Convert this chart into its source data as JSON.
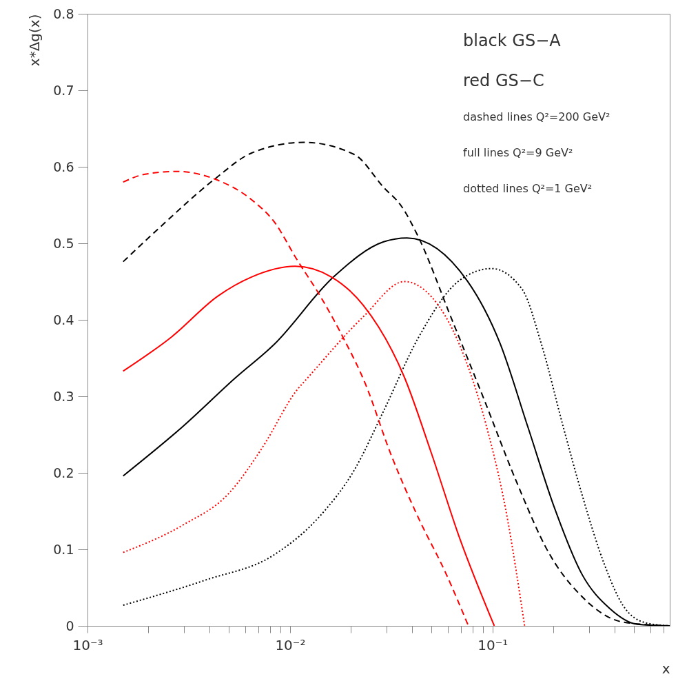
{
  "chart_data": {
    "type": "line",
    "xlabel": "x",
    "ylabel": "x*Δg(x)",
    "log": "x",
    "grid": false,
    "xlim": [
      0.001,
      0.75
    ],
    "ylim": [
      0,
      0.8
    ],
    "xticks": [
      {
        "value": 0.001,
        "label": "10⁻³"
      },
      {
        "value": 0.002,
        "label": null
      },
      {
        "value": 0.003,
        "label": null
      },
      {
        "value": 0.004,
        "label": null
      },
      {
        "value": 0.005,
        "label": null
      },
      {
        "value": 0.006,
        "label": null
      },
      {
        "value": 0.007,
        "label": null
      },
      {
        "value": 0.008,
        "label": null
      },
      {
        "value": 0.009,
        "label": null
      },
      {
        "value": 0.01,
        "label": "10⁻²"
      },
      {
        "value": 0.02,
        "label": null
      },
      {
        "value": 0.03,
        "label": null
      },
      {
        "value": 0.04,
        "label": null
      },
      {
        "value": 0.05,
        "label": null
      },
      {
        "value": 0.06,
        "label": null
      },
      {
        "value": 0.07,
        "label": null
      },
      {
        "value": 0.08,
        "label": null
      },
      {
        "value": 0.09,
        "label": null
      },
      {
        "value": 0.1,
        "label": "10⁻¹"
      },
      {
        "value": 0.2,
        "label": null
      },
      {
        "value": 0.3,
        "label": null
      },
      {
        "value": 0.4,
        "label": null
      },
      {
        "value": 0.5,
        "label": null
      },
      {
        "value": 0.6,
        "label": null
      },
      {
        "value": 0.7,
        "label": null
      }
    ],
    "yticks": [
      0,
      0.1,
      0.2,
      0.3,
      0.4,
      0.5,
      0.6,
      0.7,
      0.8
    ],
    "annotations": [
      "black GS−A",
      "red GS−C",
      "dashed lines Q²=200 GeV²",
      "full lines Q²=9 GeV²",
      "dotted lines Q²=1 GeV²"
    ],
    "series": [
      {
        "color": "#000000",
        "line_style": "dashed",
        "x": [
          0.0015,
          0.00228,
          0.00425,
          0.00646,
          0.0117,
          0.0208,
          0.029,
          0.0356,
          0.0429,
          0.0622,
          0.0905,
          0.131,
          0.19,
          0.277,
          0.44,
          0.75
        ],
        "values": [
          0.476,
          0.521,
          0.584,
          0.618,
          0.632,
          0.616,
          0.573,
          0.548,
          0.509,
          0.404,
          0.297,
          0.189,
          0.095,
          0.038,
          0.005,
          0
        ]
      },
      {
        "color": "#000000",
        "line_style": "solid",
        "x": [
          0.0015,
          0.00297,
          0.00537,
          0.00836,
          0.0164,
          0.029,
          0.0378,
          0.075,
          0.109,
          0.149,
          0.203,
          0.277,
          0.378,
          0.52,
          0.75
        ],
        "values": [
          0.196,
          0.261,
          0.324,
          0.368,
          0.456,
          0.502,
          0.507,
          0.451,
          0.369,
          0.261,
          0.153,
          0.067,
          0.023,
          0.002,
          0
        ]
      },
      {
        "color": "#000000",
        "line_style": "dotted",
        "x": [
          0.0015,
          0.00384,
          0.00836,
          0.0141,
          0.0208,
          0.029,
          0.0429,
          0.0683,
          0.0991,
          0.14,
          0.174,
          0.223,
          0.277,
          0.356,
          0.44,
          0.57,
          0.75
        ],
        "values": [
          0.027,
          0.06,
          0.093,
          0.144,
          0.204,
          0.281,
          0.376,
          0.451,
          0.467,
          0.44,
          0.369,
          0.261,
          0.171,
          0.081,
          0.027,
          0.004,
          0
        ]
      },
      {
        "color": "#ff0000",
        "line_style": "dashed",
        "x": [
          0.0015,
          0.0019,
          0.00275,
          0.00425,
          0.00646,
          0.00836,
          0.0108,
          0.0141,
          0.0182,
          0.0235,
          0.0314,
          0.0429,
          0.0585,
          0.076
        ],
        "values": [
          0.58,
          0.59,
          0.594,
          0.584,
          0.557,
          0.528,
          0.479,
          0.431,
          0.378,
          0.317,
          0.225,
          0.142,
          0.07,
          0
        ]
      },
      {
        "color": "#ff0000",
        "line_style": "solid",
        "x": [
          0.0015,
          0.00261,
          0.0044,
          0.00646,
          0.0106,
          0.016,
          0.023,
          0.0367,
          0.05,
          0.0683,
          0.102
        ],
        "values": [
          0.333,
          0.378,
          0.431,
          0.456,
          0.47,
          0.456,
          0.419,
          0.325,
          0.225,
          0.117,
          0
        ]
      },
      {
        "color": "#ff0000",
        "line_style": "dotted",
        "x": [
          0.0015,
          0.00297,
          0.00498,
          0.00734,
          0.0108,
          0.0123,
          0.023,
          0.0367,
          0.05,
          0.0683,
          0.0933,
          0.116,
          0.144
        ],
        "values": [
          0.096,
          0.132,
          0.173,
          0.234,
          0.308,
          0.325,
          0.404,
          0.45,
          0.43,
          0.369,
          0.261,
          0.153,
          0
        ]
      }
    ]
  }
}
